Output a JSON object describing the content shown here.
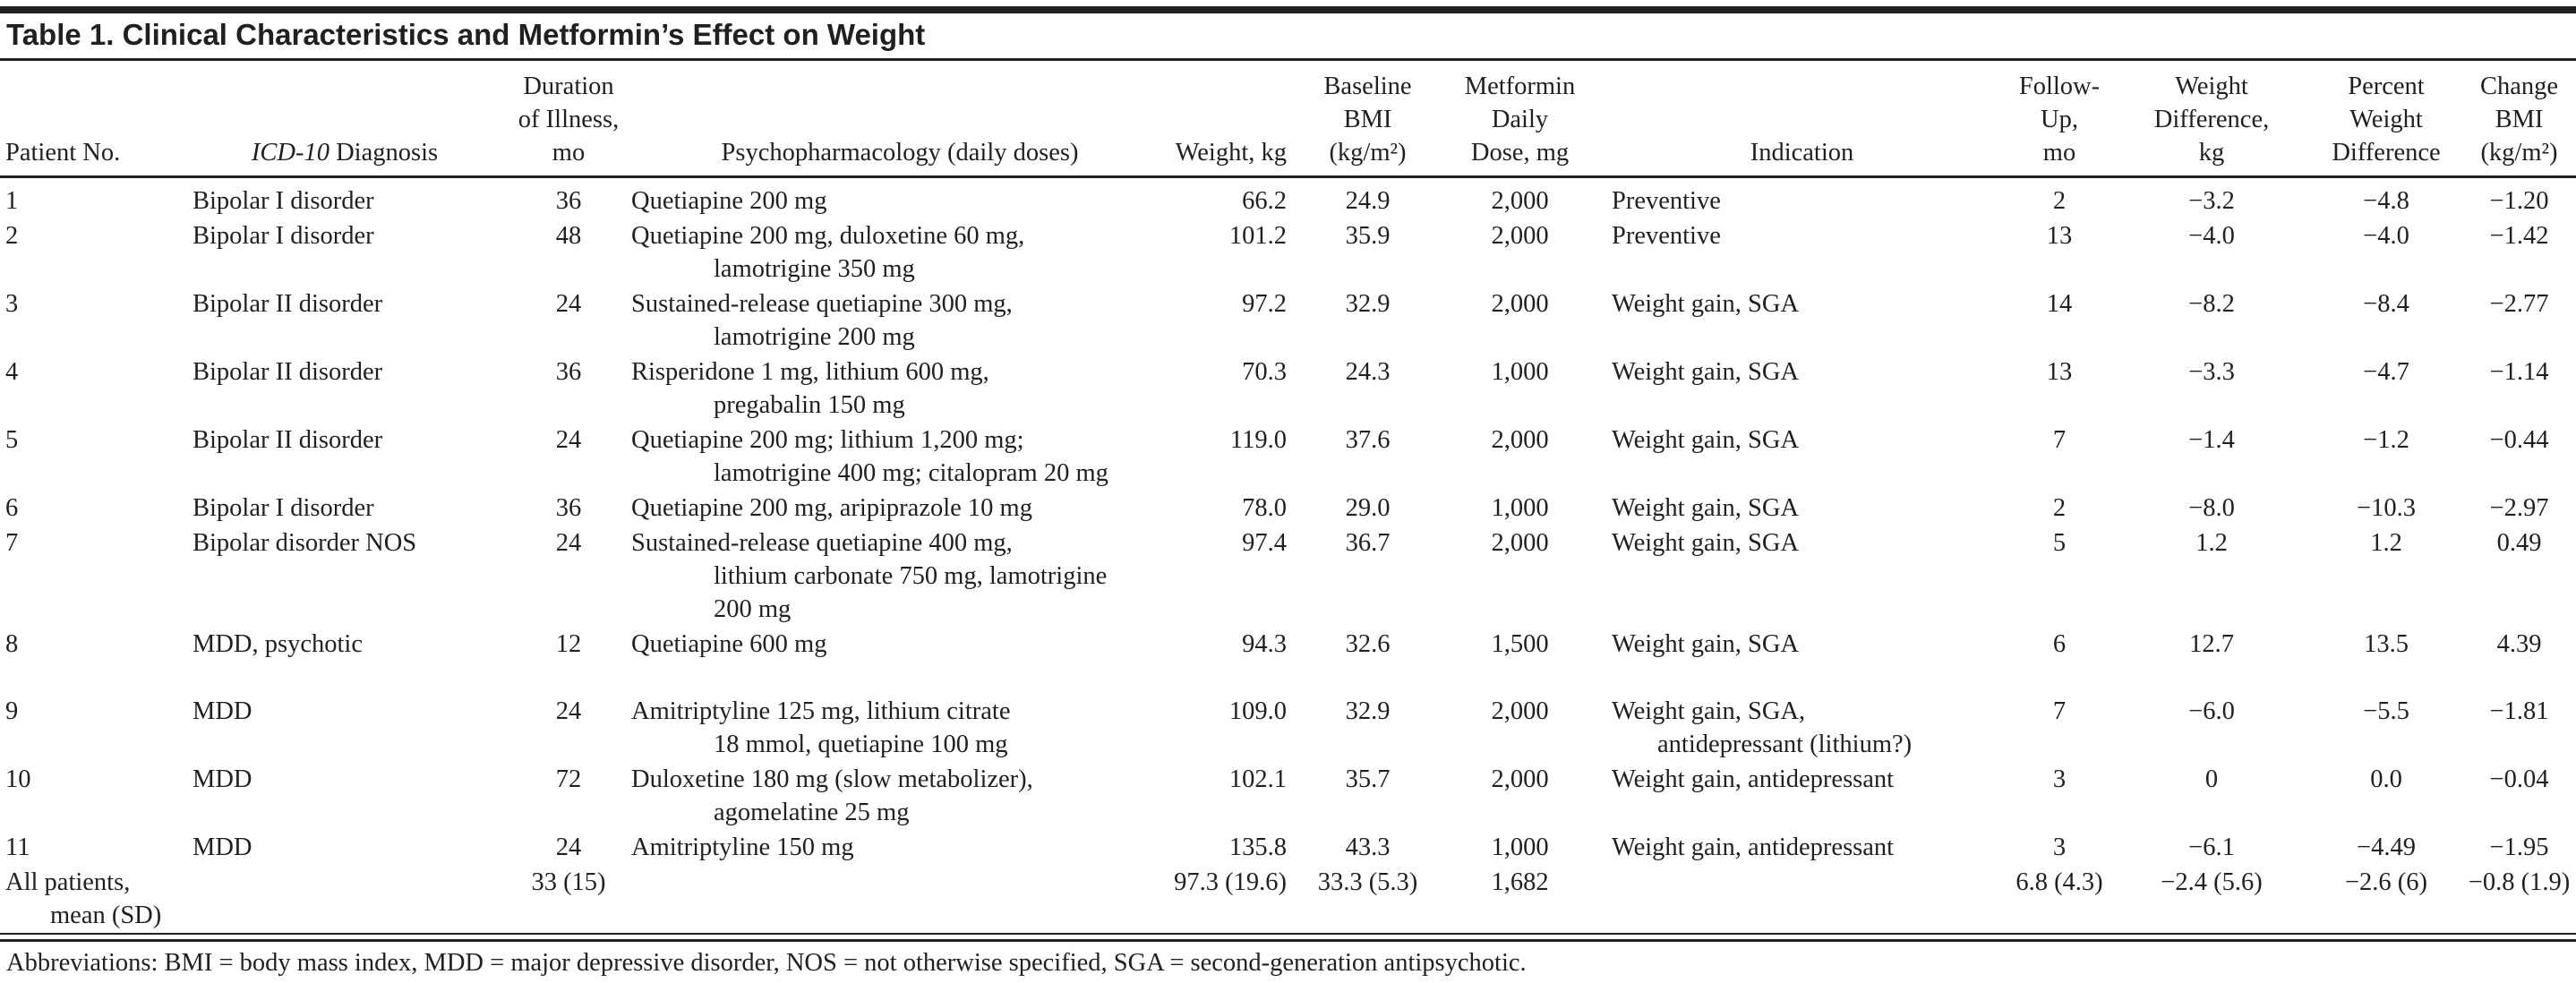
{
  "title": "Table 1. Clinical Characteristics and Metformin’s Effect on Weight",
  "table": {
    "headers": {
      "patient_no": "Patient No.",
      "diagnosis_italic": "ICD-10",
      "diagnosis_rest": " Diagnosis",
      "duration": "Duration\nof Illness,\nmo",
      "psychopharm": "Psychopharmacology (daily doses)",
      "weight": "Weight, kg",
      "bmi": "Baseline\nBMI\n(kg/m²)",
      "metformin": "Metformin\nDaily\nDose, mg",
      "indication": "Indication",
      "followup": "Follow-Up,\nmo",
      "weight_diff": "Weight\nDifference,\nkg",
      "pct_diff": "Percent\nWeight\nDifference",
      "change_bmi": "Change\nBMI\n(kg/m²)"
    },
    "rows": [
      {
        "patient_no": "1",
        "diagnosis": "Bipolar I disorder",
        "duration": "36",
        "psychopharm": "Quetiapine 200 mg",
        "weight": "66.2",
        "bmi": "24.9",
        "metformin": "2,000",
        "indication": "Preventive",
        "followup": "2",
        "weight_diff": "−3.2",
        "pct_diff": "−4.8",
        "change_bmi": "−1.20"
      },
      {
        "patient_no": "2",
        "diagnosis": "Bipolar I disorder",
        "duration": "48",
        "psychopharm": "Quetiapine 200 mg, duloxetine 60 mg,\nlamotrigine 350 mg",
        "weight": "101.2",
        "bmi": "35.9",
        "metformin": "2,000",
        "indication": "Preventive",
        "followup": "13",
        "weight_diff": "−4.0",
        "pct_diff": "−4.0",
        "change_bmi": "−1.42"
      },
      {
        "patient_no": "3",
        "diagnosis": "Bipolar II disorder",
        "duration": "24",
        "psychopharm": "Sustained-release quetiapine 300 mg,\nlamotrigine 200 mg",
        "weight": "97.2",
        "bmi": "32.9",
        "metformin": "2,000",
        "indication": "Weight gain, SGA",
        "followup": "14",
        "weight_diff": "−8.2",
        "pct_diff": "−8.4",
        "change_bmi": "−2.77"
      },
      {
        "patient_no": "4",
        "diagnosis": "Bipolar II disorder",
        "duration": "36",
        "psychopharm": "Risperidone 1 mg, lithium 600 mg,\npregabalin 150 mg",
        "weight": "70.3",
        "bmi": "24.3",
        "metformin": "1,000",
        "indication": "Weight gain, SGA",
        "followup": "13",
        "weight_diff": "−3.3",
        "pct_diff": "−4.7",
        "change_bmi": "−1.14"
      },
      {
        "patient_no": "5",
        "diagnosis": "Bipolar II disorder",
        "duration": "24",
        "psychopharm": "Quetiapine 200 mg; lithium 1,200 mg;\nlamotrigine 400 mg; citalopram 20 mg",
        "weight": "119.0",
        "bmi": "37.6",
        "metformin": "2,000",
        "indication": "Weight gain, SGA",
        "followup": "7",
        "weight_diff": "−1.4",
        "pct_diff": "−1.2",
        "change_bmi": "−0.44"
      },
      {
        "patient_no": "6",
        "diagnosis": "Bipolar I disorder",
        "duration": "36",
        "psychopharm": "Quetiapine 200 mg, aripiprazole 10 mg",
        "weight": "78.0",
        "bmi": "29.0",
        "metformin": "1,000",
        "indication": "Weight gain, SGA",
        "followup": "2",
        "weight_diff": "−8.0",
        "pct_diff": "−10.3",
        "change_bmi": "−2.97"
      },
      {
        "patient_no": "7",
        "diagnosis": "Bipolar disorder NOS",
        "duration": "24",
        "psychopharm": "Sustained-release quetiapine 400 mg,\nlithium carbonate 750 mg, lamotrigine\n200 mg",
        "weight": "97.4",
        "bmi": "36.7",
        "metformin": "2,000",
        "indication": "Weight gain, SGA",
        "followup": "5",
        "weight_diff": "1.2",
        "pct_diff": "1.2",
        "change_bmi": "0.49"
      },
      {
        "patient_no": "8",
        "diagnosis": "MDD, psychotic",
        "duration": "12",
        "psychopharm": "Quetiapine 600 mg",
        "weight": "94.3",
        "bmi": "32.6",
        "metformin": "1,500",
        "indication": "Weight gain, SGA",
        "followup": "6",
        "weight_diff": "12.7",
        "pct_diff": "13.5",
        "change_bmi": "4.39"
      },
      {
        "patient_no": "9",
        "diagnosis": "MDD",
        "duration": "24",
        "psychopharm": "Amitriptyline 125 mg, lithium citrate\n18 mmol, quetiapine 100 mg",
        "weight": "109.0",
        "bmi": "32.9",
        "metformin": "2,000",
        "indication": "Weight gain, SGA,\nantidepressant (lithium?)",
        "followup": "7",
        "weight_diff": "−6.0",
        "pct_diff": "−5.5",
        "change_bmi": "−1.81"
      },
      {
        "patient_no": "10",
        "diagnosis": "MDD",
        "duration": "72",
        "psychopharm": "Duloxetine 180 mg (slow metabolizer),\nagomelatine 25 mg",
        "weight": "102.1",
        "bmi": "35.7",
        "metformin": "2,000",
        "indication": "Weight gain, antidepressant",
        "followup": "3",
        "weight_diff": "0",
        "pct_diff": "0.0",
        "change_bmi": "−0.04"
      },
      {
        "patient_no": "11",
        "diagnosis": "MDD",
        "duration": "24",
        "psychopharm": "Amitriptyline 150 mg",
        "weight": "135.8",
        "bmi": "43.3",
        "metformin": "1,000",
        "indication": "Weight gain, antidepressant",
        "followup": "3",
        "weight_diff": "−6.1",
        "pct_diff": "−4.49",
        "change_bmi": "−1.95"
      },
      {
        "patient_no": "All patients,\nmean (SD)",
        "diagnosis": "",
        "duration": "33 (15)",
        "psychopharm": "",
        "weight": "97.3 (19.6)",
        "bmi": "33.3 (5.3)",
        "metformin": "1,682",
        "indication": "",
        "followup": "6.8 (4.3)",
        "weight_diff": "−2.4 (5.6)",
        "pct_diff": "−2.6 (6)",
        "change_bmi": "−0.8 (1.9)"
      }
    ],
    "footnote": "Abbreviations: BMI = body mass index, MDD = major depressive disorder, NOS = not otherwise specified, SGA = second-generation antipsychotic."
  }
}
